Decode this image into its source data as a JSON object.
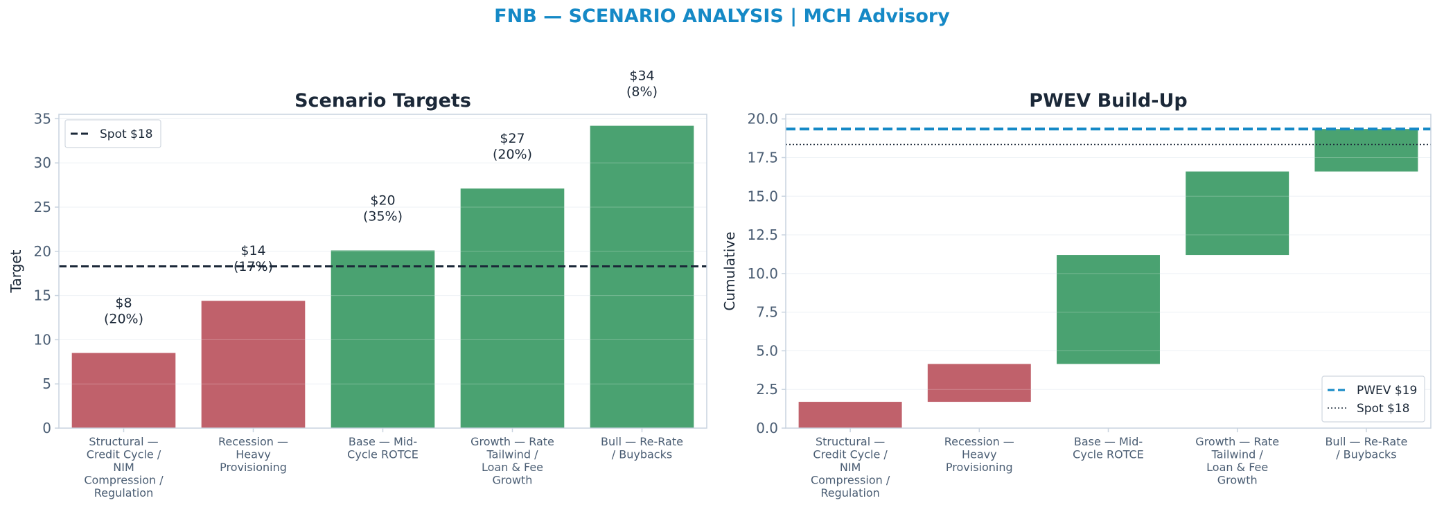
{
  "suptitle": "FNB — SCENARIO ANALYSIS | MCH Advisory",
  "colors": {
    "title": "#1589c6",
    "text": "#1b2838",
    "tick": "#4a5d73",
    "red": "#c0616b",
    "green": "#4aa271",
    "spot_line": "#1b2838",
    "pwev_line": "#1589c6",
    "axis": "#c8d3df"
  },
  "chart_data": [
    {
      "type": "bar",
      "title": "Scenario Targets",
      "xlabel": "",
      "ylabel": "Target",
      "ylim": [
        0,
        35.5
      ],
      "yticks": [
        "0",
        "5",
        "10",
        "15",
        "20",
        "25",
        "30",
        "35"
      ],
      "categories": [
        "Structural — Credit Cycle / NIM Compression / Regulation",
        "Recession — Heavy Provisioning",
        "Base — Mid-Cycle ROTCE",
        "Growth — Rate Tailwind / Loan & Fee Growth",
        "Bull — Re-Rate / Buybacks"
      ],
      "category_lines": [
        [
          "Structural —",
          "Credit Cycle /",
          "NIM",
          "Compression /",
          "Regulation"
        ],
        [
          "Recession —",
          "Heavy",
          "Provisioning"
        ],
        [
          "Base — Mid-",
          "Cycle ROTCE"
        ],
        [
          "Growth — Rate",
          "Tailwind /",
          "Loan & Fee",
          "Growth"
        ],
        [
          "Bull — Re-Rate",
          "/ Buybacks"
        ]
      ],
      "values": [
        8.5,
        14.4,
        20.1,
        27.1,
        34.2
      ],
      "bar_colors": [
        "#c0616b",
        "#c0616b",
        "#4aa271",
        "#4aa271",
        "#4aa271"
      ],
      "labels": [
        [
          "$8",
          "(20%)"
        ],
        [
          "$14",
          "(17%)"
        ],
        [
          "$20",
          "(35%)"
        ],
        [
          "$27",
          "(20%)"
        ],
        [
          "$34",
          "(8%)"
        ]
      ],
      "reference_line": {
        "name": "Spot $18",
        "value": 18.3,
        "style": "dashed"
      },
      "legend": {
        "entries": [
          "Spot $18"
        ],
        "placement": "upper-left"
      },
      "grid": true
    },
    {
      "type": "bar",
      "subtype": "waterfall",
      "title": "PWEV Build-Up",
      "xlabel": "",
      "ylabel": "Cumulative",
      "ylim": [
        0,
        20.3
      ],
      "yticks": [
        "0.0",
        "2.5",
        "5.0",
        "7.5",
        "10.0",
        "12.5",
        "15.0",
        "17.5",
        "20.0"
      ],
      "categories": [
        "Structural — Credit Cycle / NIM Compression / Regulation",
        "Recession — Heavy Provisioning",
        "Base — Mid-Cycle ROTCE",
        "Growth — Rate Tailwind / Loan & Fee Growth",
        "Bull — Re-Rate / Buybacks"
      ],
      "category_lines": [
        [
          "Structural —",
          "Credit Cycle /",
          "NIM",
          "Compression /",
          "Regulation"
        ],
        [
          "Recession —",
          "Heavy",
          "Provisioning"
        ],
        [
          "Base — Mid-",
          "Cycle ROTCE"
        ],
        [
          "Growth — Rate",
          "Tailwind /",
          "Loan & Fee",
          "Growth"
        ],
        [
          "Bull — Re-Rate",
          "/ Buybacks"
        ]
      ],
      "bases": [
        0,
        1.7,
        4.15,
        11.2,
        16.6
      ],
      "values": [
        1.7,
        2.45,
        7.05,
        5.4,
        2.75
      ],
      "bar_colors": [
        "#c0616b",
        "#c0616b",
        "#4aa271",
        "#4aa271",
        "#4aa271"
      ],
      "reference_lines": [
        {
          "name": "PWEV $19",
          "value": 19.35,
          "style": "dashed"
        },
        {
          "name": "Spot $18",
          "value": 18.35,
          "style": "dotted"
        }
      ],
      "legend": {
        "entries": [
          "PWEV $19",
          "Spot $18"
        ],
        "placement": "lower-right"
      },
      "grid": true
    }
  ]
}
